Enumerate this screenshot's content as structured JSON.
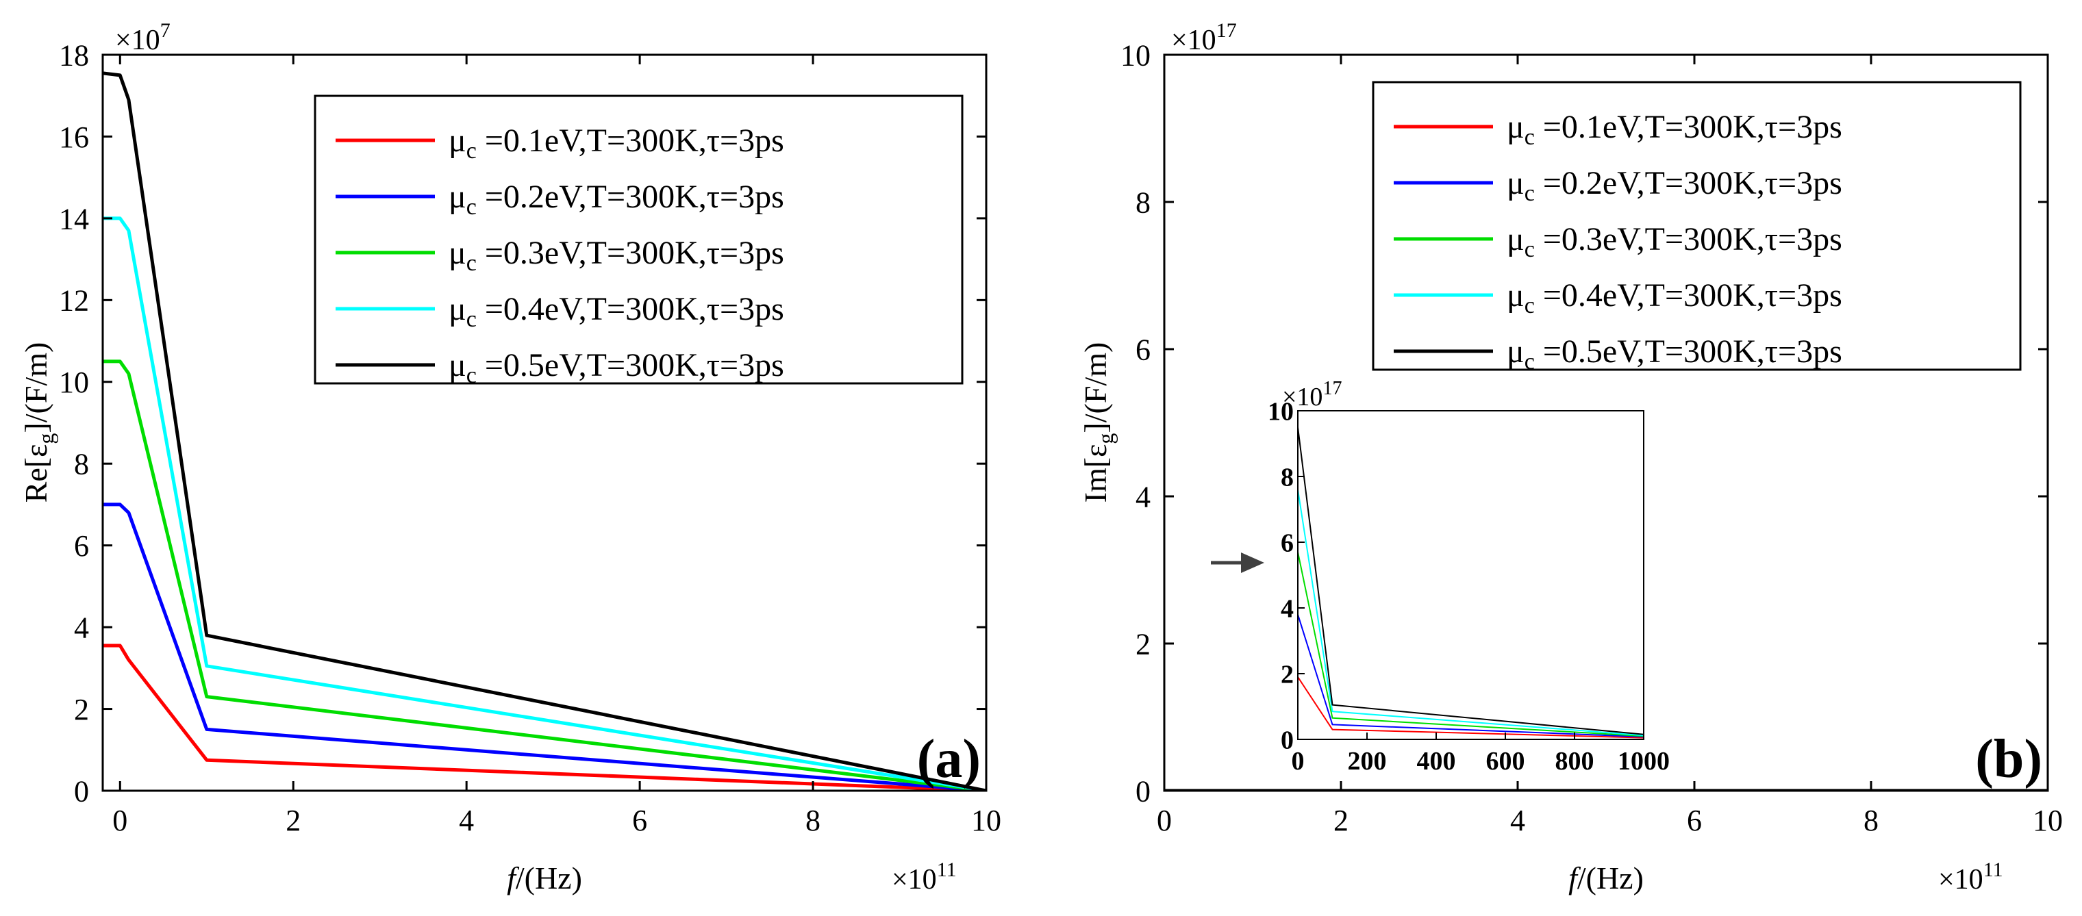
{
  "colors": {
    "red": "#ff0000",
    "blue": "#0000ff",
    "green": "#00dd00",
    "cyan": "#00ffff",
    "black": "#000000",
    "arrow": "#404040"
  },
  "chart_data": [
    {
      "type": "line",
      "panel_label": "(a)",
      "title": "",
      "xlabel_italic": "f",
      "xlabel_rest": "/(Hz)",
      "x_exponent_base": "×10",
      "x_exponent_power": "11",
      "ylabel_pre": "Re[ε",
      "ylabel_sub": "g",
      "ylabel_post": "]/(F/m)",
      "y_exponent_base": "×10",
      "y_exponent_power": "7",
      "xlim": [
        -0.2,
        10
      ],
      "ylim": [
        0,
        18
      ],
      "xticks": [
        0,
        2,
        4,
        6,
        8,
        10
      ],
      "xtick_labels": [
        "0",
        "2",
        "4",
        "6",
        "8",
        "10"
      ],
      "yticks": [
        0,
        2,
        4,
        6,
        8,
        10,
        12,
        14,
        16,
        18
      ],
      "ytick_labels": [
        "0",
        "2",
        "4",
        "6",
        "8",
        "10",
        "12",
        "14",
        "16",
        "18"
      ],
      "legend_position": "top-right",
      "series": [
        {
          "name": "μc=0.1eV,T=300K,τ=3ps",
          "mu": "0.1",
          "color_key": "red",
          "x": [
            -0.2,
            0.0,
            0.1,
            1.0,
            10.0
          ],
          "y": [
            3.55,
            3.55,
            3.2,
            0.75,
            0.0
          ]
        },
        {
          "name": "μc=0.2eV,T=300K,τ=3ps",
          "mu": "0.2",
          "color_key": "blue",
          "x": [
            -0.2,
            0.0,
            0.1,
            1.0,
            10.0
          ],
          "y": [
            7.0,
            7.0,
            6.8,
            1.5,
            0.0
          ]
        },
        {
          "name": "μc=0.3eV,T=300K,τ=3ps",
          "mu": "0.3",
          "color_key": "green",
          "x": [
            -0.2,
            0.0,
            0.1,
            1.0,
            10.0
          ],
          "y": [
            10.5,
            10.5,
            10.2,
            2.3,
            0.0
          ]
        },
        {
          "name": "μc=0.4eV,T=300K,τ=3ps",
          "mu": "0.4",
          "color_key": "cyan",
          "x": [
            -0.2,
            0.0,
            0.1,
            1.0,
            10.0
          ],
          "y": [
            14.0,
            14.0,
            13.7,
            3.05,
            0.0
          ]
        },
        {
          "name": "μc=0.5eV,T=300K,τ=3ps",
          "mu": "0.5",
          "color_key": "black",
          "x": [
            -0.2,
            0.0,
            0.1,
            1.0,
            10.0
          ],
          "y": [
            17.55,
            17.5,
            16.9,
            3.8,
            0.0
          ]
        }
      ]
    },
    {
      "type": "line",
      "panel_label": "(b)",
      "title": "",
      "xlabel_italic": "f",
      "xlabel_rest": "/(Hz)",
      "x_exponent_base": "×10",
      "x_exponent_power": "11",
      "ylabel_pre": "Im[ε",
      "ylabel_sub": "g",
      "ylabel_post": "]/(F/m)",
      "y_exponent_base": "×10",
      "y_exponent_power": "17",
      "xlim": [
        0,
        10
      ],
      "ylim": [
        0,
        10
      ],
      "xticks": [
        0,
        2,
        4,
        6,
        8,
        10
      ],
      "xtick_labels": [
        "0",
        "2",
        "4",
        "6",
        "8",
        "10"
      ],
      "yticks": [
        0,
        2,
        4,
        6,
        8,
        10
      ],
      "ytick_labels": [
        "0",
        "2",
        "4",
        "6",
        "8",
        "10"
      ],
      "legend_position": "top-right",
      "series": [
        {
          "name": "μc=0.1eV,T=300K,τ=3ps",
          "mu": "0.1",
          "color_key": "red",
          "x": [
            0,
            10
          ],
          "y": [
            0,
            0
          ]
        },
        {
          "name": "μc=0.2eV,T=300K,τ=3ps",
          "mu": "0.2",
          "color_key": "blue",
          "x": [
            0,
            10
          ],
          "y": [
            0,
            0
          ]
        },
        {
          "name": "μc=0.3eV,T=300K,τ=3ps",
          "mu": "0.3",
          "color_key": "green",
          "x": [
            0,
            10
          ],
          "y": [
            0,
            0
          ]
        },
        {
          "name": "μc=0.4eV,T=300K,τ=3ps",
          "mu": "0.4",
          "color_key": "cyan",
          "x": [
            0,
            10
          ],
          "y": [
            0,
            0
          ]
        },
        {
          "name": "μc=0.5eV,T=300K,τ=3ps",
          "mu": "0.5",
          "color_key": "black",
          "x": [
            0,
            10
          ],
          "y": [
            0,
            0
          ]
        }
      ],
      "inset": {
        "xlim": [
          0,
          1000
        ],
        "ylim": [
          0,
          10
        ],
        "xticks": [
          0,
          200,
          400,
          600,
          800,
          1000
        ],
        "xtick_labels": [
          "0",
          "200",
          "400",
          "600",
          "800",
          "1000"
        ],
        "yticks": [
          0,
          2,
          4,
          6,
          8,
          10
        ],
        "ytick_labels": [
          "0",
          "2",
          "4",
          "6",
          "8",
          "10"
        ],
        "y_exponent_base": "×10",
        "y_exponent_power": "17",
        "series": [
          {
            "color_key": "red",
            "x": [
              0,
              100,
              1000
            ],
            "y": [
              1.9,
              0.3,
              0.05
            ]
          },
          {
            "color_key": "blue",
            "x": [
              0,
              100,
              1000
            ],
            "y": [
              3.8,
              0.45,
              0.08
            ]
          },
          {
            "color_key": "green",
            "x": [
              0,
              100,
              1000
            ],
            "y": [
              5.7,
              0.65,
              0.1
            ]
          },
          {
            "color_key": "cyan",
            "x": [
              0,
              100,
              1000
            ],
            "y": [
              7.6,
              0.85,
              0.12
            ]
          },
          {
            "color_key": "black",
            "x": [
              0,
              100,
              1000
            ],
            "y": [
              9.5,
              1.05,
              0.15
            ]
          }
        ]
      }
    }
  ]
}
